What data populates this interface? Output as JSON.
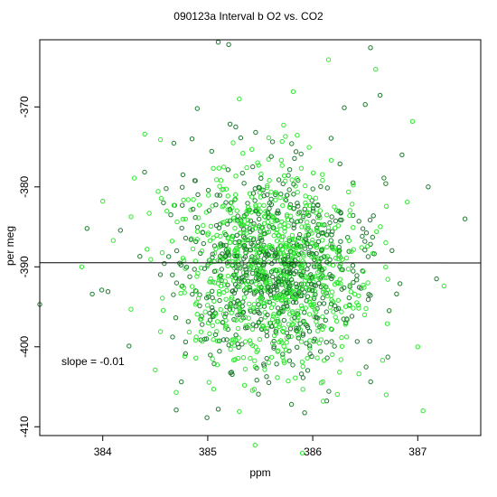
{
  "chart_data": {
    "type": "scatter",
    "title": "090123a   Interval b O2 vs. CO2",
    "xlabel": "ppm",
    "ylabel": "per meg",
    "xlim": [
      383.4,
      387.6
    ],
    "ylim": [
      -411.1,
      -361.6
    ],
    "x_ticks": [
      384,
      385,
      386,
      387
    ],
    "y_ticks": [
      -370,
      -380,
      -390,
      -400,
      -410
    ],
    "grid": false,
    "legend": "none",
    "colors": {
      "series_dark": "#1f7a2e",
      "series_light": "#2ee82e",
      "fit_line": "#000000"
    },
    "annotation": "slope =  -0.01",
    "fit_line": {
      "slope": -0.01,
      "intercept": -389.5
    },
    "cluster": {
      "center_x": 385.62,
      "center_y": -390.2,
      "sd_x": 0.45,
      "sd_y": 6.2,
      "count": 1500
    },
    "series": [
      {
        "points": [
          [
            383.4,
            -394.7
          ],
          [
            383.85,
            -385.2
          ],
          [
            383.8,
            -390.0
          ],
          [
            384.0,
            -381.8
          ],
          [
            384.05,
            -393.1
          ],
          [
            384.25,
            -399.9
          ],
          [
            384.3,
            -378.9
          ],
          [
            384.4,
            -373.4
          ],
          [
            384.55,
            -374.1
          ],
          [
            384.55,
            -398.1
          ],
          [
            384.5,
            -402.9
          ],
          [
            384.7,
            -407.9
          ],
          [
            384.7,
            -405.7
          ],
          [
            384.9,
            -370.2
          ],
          [
            385.1,
            -361.9
          ],
          [
            385.2,
            -362.2
          ],
          [
            385.3,
            -408.1
          ],
          [
            385.35,
            -404.8
          ],
          [
            385.45,
            -412.3
          ],
          [
            385.3,
            -369.0
          ],
          [
            385.9,
            -413.3
          ],
          [
            386.1,
            -406.8
          ],
          [
            386.15,
            -364.1
          ],
          [
            386.3,
            -370.1
          ],
          [
            386.5,
            -369.7
          ],
          [
            386.55,
            -362.6
          ],
          [
            386.6,
            -365.3
          ],
          [
            386.7,
            -406.0
          ],
          [
            386.9,
            -381.9
          ],
          [
            387.0,
            -400.0
          ],
          [
            387.05,
            -408.0
          ],
          [
            387.1,
            -380.0
          ],
          [
            387.25,
            -392.4
          ],
          [
            387.45,
            -384.0
          ],
          [
            386.95,
            -371.8
          ],
          [
            384.1,
            -386.7
          ],
          [
            383.9,
            -393.4
          ],
          [
            385.1,
            -407.8
          ],
          [
            384.85,
            -374.0
          ],
          [
            386.85,
            -376.0
          ]
        ]
      }
    ]
  }
}
